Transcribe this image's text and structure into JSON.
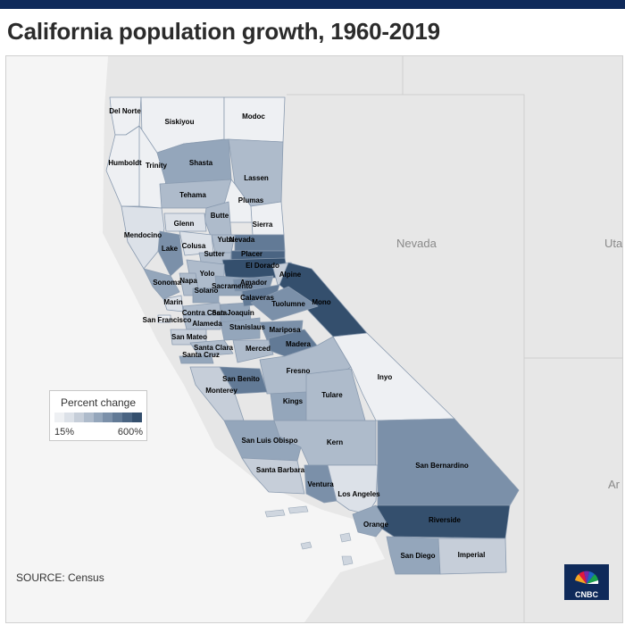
{
  "title": "California population growth, 1960-2019",
  "source": "SOURCE: Census",
  "logo_text": "CNBC",
  "legend": {
    "title": "Percent change",
    "min_label": "15%",
    "max_label": "600%",
    "colors": [
      "#eef0f3",
      "#dce1e8",
      "#c6ced9",
      "#aebbcb",
      "#94a6bb",
      "#7b90a9",
      "#627a96",
      "#4a6482",
      "#344f6d"
    ]
  },
  "state_labels": [
    "Nevada",
    "Uta",
    "Ar"
  ],
  "counties": [
    {
      "name": "Del Norte",
      "level": 0
    },
    {
      "name": "Siskiyou",
      "level": 0
    },
    {
      "name": "Modoc",
      "level": 0
    },
    {
      "name": "Humboldt",
      "level": 0
    },
    {
      "name": "Trinity",
      "level": 0
    },
    {
      "name": "Shasta",
      "level": 4
    },
    {
      "name": "Lassen",
      "level": 3
    },
    {
      "name": "Tehama",
      "level": 3
    },
    {
      "name": "Plumas",
      "level": 0
    },
    {
      "name": "Butte",
      "level": 3
    },
    {
      "name": "Mendocino",
      "level": 1
    },
    {
      "name": "Glenn",
      "level": 1
    },
    {
      "name": "Sierra",
      "level": 0
    },
    {
      "name": "Yuba",
      "level": 3
    },
    {
      "name": "Nevada",
      "level": 6
    },
    {
      "name": "Lake",
      "level": 5
    },
    {
      "name": "Colusa",
      "level": 1
    },
    {
      "name": "Sutter",
      "level": 3
    },
    {
      "name": "Placer",
      "level": 7
    },
    {
      "name": "El Dorado",
      "level": 8
    },
    {
      "name": "Yolo",
      "level": 3
    },
    {
      "name": "Sonoma",
      "level": 4
    },
    {
      "name": "Napa",
      "level": 3
    },
    {
      "name": "Sacramento",
      "level": 4
    },
    {
      "name": "Solano",
      "level": 4
    },
    {
      "name": "Alpine",
      "level": 2
    },
    {
      "name": "Amador",
      "level": 5
    },
    {
      "name": "Marin",
      "level": 1
    },
    {
      "name": "Contra Costa",
      "level": 3
    },
    {
      "name": "San Joaquin",
      "level": 4
    },
    {
      "name": "Calaveras",
      "level": 6
    },
    {
      "name": "Mono",
      "level": 8
    },
    {
      "name": "San Francisco",
      "level": 0
    },
    {
      "name": "Alameda",
      "level": 3
    },
    {
      "name": "Tuolumne",
      "level": 5
    },
    {
      "name": "Stanislaus",
      "level": 4
    },
    {
      "name": "San Mateo",
      "level": 2
    },
    {
      "name": "Mariposa",
      "level": 5
    },
    {
      "name": "Santa Clara",
      "level": 3
    },
    {
      "name": "Santa Cruz",
      "level": 4
    },
    {
      "name": "Merced",
      "level": 3
    },
    {
      "name": "Madera",
      "level": 6
    },
    {
      "name": "Fresno",
      "level": 3
    },
    {
      "name": "Inyo",
      "level": 0
    },
    {
      "name": "San Benito",
      "level": 6
    },
    {
      "name": "Monterey",
      "level": 2
    },
    {
      "name": "Kings",
      "level": 4
    },
    {
      "name": "Tulare",
      "level": 3
    },
    {
      "name": "San Luis Obispo",
      "level": 4
    },
    {
      "name": "Kern",
      "level": 3
    },
    {
      "name": "Santa Barbara",
      "level": 2
    },
    {
      "name": "Ventura",
      "level": 5
    },
    {
      "name": "Los Angeles",
      "level": 1
    },
    {
      "name": "San Bernardino",
      "level": 5
    },
    {
      "name": "Riverside",
      "level": 8
    },
    {
      "name": "Orange",
      "level": 4
    },
    {
      "name": "San Diego",
      "level": 4
    },
    {
      "name": "Imperial",
      "level": 2
    }
  ]
}
